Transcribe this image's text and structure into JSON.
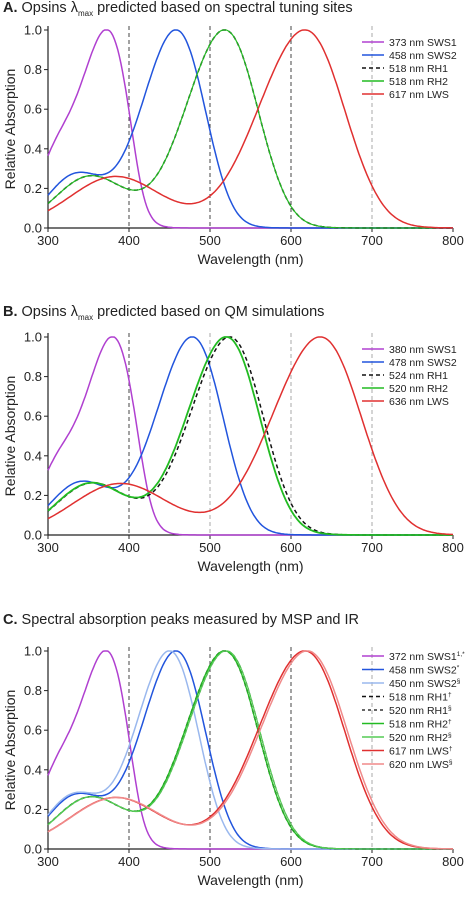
{
  "charts": [
    {
      "panel_letter": "A.",
      "title_pre": "Opsins λ",
      "title_sub": "max",
      "title_post": " predicted based on spectral tuning sites"
    },
    {
      "panel_letter": "B.",
      "title_pre": "Opsins λ",
      "title_sub": "max",
      "title_post": " predicted based on QM simulations"
    },
    {
      "panel_letter": "C.",
      "title_pre": "Spectral absorption peaks measured by MSP and IR",
      "title_sub": "",
      "title_post": ""
    }
  ],
  "chart_data": [
    {
      "type": "line",
      "xlabel": "Wavelength (nm)",
      "ylabel": "Relative Absorption",
      "xlim": [
        300,
        800
      ],
      "ylim": [
        0,
        1.0
      ],
      "xticks": [
        300,
        400,
        500,
        600,
        700,
        800
      ],
      "yticks": [
        0.0,
        0.2,
        0.4,
        0.6,
        0.8,
        1.0
      ],
      "reference_lines": [
        {
          "x": 400,
          "color": "#444444"
        },
        {
          "x": 500,
          "color": "#444444"
        },
        {
          "x": 600,
          "color": "#444444"
        },
        {
          "x": 700,
          "color": "#aaaaaa"
        }
      ],
      "legend_position": "top-right",
      "series": [
        {
          "name": "373 nm SWS1",
          "lmax": 373,
          "beta": true,
          "color": "#b040d0",
          "dash": "",
          "width": 1.5
        },
        {
          "name": "458 nm SWS2",
          "lmax": 458,
          "beta": true,
          "color": "#2255dd",
          "dash": "",
          "width": 1.5
        },
        {
          "name": "518 nm RH1",
          "lmax": 518,
          "beta": true,
          "color": "#111111",
          "dash": "4,3",
          "width": 1.5
        },
        {
          "name": "518 nm RH2",
          "lmax": 518,
          "beta": true,
          "color": "#22bb22",
          "dash": "",
          "width": 1.2
        },
        {
          "name": "617 nm LWS",
          "lmax": 617,
          "beta": true,
          "color": "#e03030",
          "dash": "",
          "width": 1.5
        }
      ]
    },
    {
      "type": "line",
      "xlabel": "Wavelength (nm)",
      "ylabel": "Relative Absorption",
      "xlim": [
        300,
        800
      ],
      "ylim": [
        0,
        1.0
      ],
      "xticks": [
        300,
        400,
        500,
        600,
        700,
        800
      ],
      "yticks": [
        0.0,
        0.2,
        0.4,
        0.6,
        0.8,
        1.0
      ],
      "reference_lines": [
        {
          "x": 400,
          "color": "#444444"
        },
        {
          "x": 500,
          "color": "#aaaaaa"
        },
        {
          "x": 600,
          "color": "#aaaaaa"
        },
        {
          "x": 700,
          "color": "#aaaaaa"
        }
      ],
      "legend_position": "top-right",
      "series": [
        {
          "name": "380 nm SWS1",
          "lmax": 380,
          "beta": true,
          "color": "#b040d0",
          "dash": "",
          "width": 1.5
        },
        {
          "name": "478 nm SWS2",
          "lmax": 478,
          "beta": true,
          "color": "#2255dd",
          "dash": "",
          "width": 1.5
        },
        {
          "name": "524 nm RH1",
          "lmax": 524,
          "beta": true,
          "color": "#111111",
          "dash": "4,3",
          "width": 1.5
        },
        {
          "name": "520 nm RH2",
          "lmax": 520,
          "beta": true,
          "color": "#22bb22",
          "dash": "",
          "width": 1.8
        },
        {
          "name": "636 nm LWS",
          "lmax": 636,
          "beta": true,
          "color": "#e03030",
          "dash": "",
          "width": 1.5
        }
      ]
    },
    {
      "type": "line",
      "xlabel": "Wavelength (nm)",
      "ylabel": "Relative Absorption",
      "xlim": [
        300,
        800
      ],
      "ylim": [
        0,
        1.0
      ],
      "xticks": [
        300,
        400,
        500,
        600,
        700,
        800
      ],
      "yticks": [
        0.0,
        0.2,
        0.4,
        0.6,
        0.8,
        1.0
      ],
      "reference_lines": [
        {
          "x": 400,
          "color": "#444444"
        },
        {
          "x": 500,
          "color": "#444444"
        },
        {
          "x": 600,
          "color": "#444444"
        },
        {
          "x": 700,
          "color": "#aaaaaa"
        }
      ],
      "legend_position": "top-right",
      "series": [
        {
          "name": "372 nm SWS1",
          "sup": "1,*",
          "lmax": 372,
          "beta": true,
          "color": "#b040d0",
          "dash": "",
          "width": 1.5
        },
        {
          "name": "458 nm SWS2",
          "sup": "*",
          "lmax": 458,
          "beta": true,
          "color": "#2255dd",
          "dash": "",
          "width": 1.5
        },
        {
          "name": "450 nm SWS2",
          "sup": "§",
          "lmax": 450,
          "beta": true,
          "color": "#9ab8ee",
          "dash": "",
          "width": 1.5
        },
        {
          "name": "518 nm RH1",
          "sup": "†",
          "lmax": 518,
          "beta": true,
          "color": "#111111",
          "dash": "4,3",
          "width": 1.5
        },
        {
          "name": "520 nm RH1",
          "sup": "§",
          "lmax": 520,
          "beta": true,
          "color": "#333333",
          "dash": "3,3",
          "width": 1.2
        },
        {
          "name": "518 nm RH2",
          "sup": "†",
          "lmax": 518,
          "beta": true,
          "color": "#22bb22",
          "dash": "",
          "width": 1.3
        },
        {
          "name": "520 nm RH2",
          "sup": "§",
          "lmax": 520,
          "beta": true,
          "color": "#55cc55",
          "dash": "",
          "width": 1.2
        },
        {
          "name": "617 nm LWS",
          "sup": "†",
          "lmax": 617,
          "beta": true,
          "color": "#e03030",
          "dash": "",
          "width": 1.5
        },
        {
          "name": "620 nm LWS",
          "sup": "§",
          "lmax": 620,
          "beta": true,
          "color": "#f08a8a",
          "dash": "",
          "width": 1.5
        }
      ]
    }
  ]
}
